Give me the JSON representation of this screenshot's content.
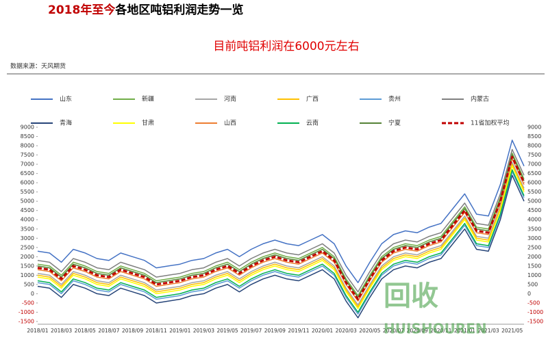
{
  "chart_data": {
    "type": "line",
    "title_highlight": "2018年至今",
    "title": "各地区吨铝利润走势一览",
    "subtitle": "目前吨铝利润在6000元左右",
    "source": "数据来源：天风期货",
    "watermark": {
      "logo": "回收",
      "text": "HUISHOUREN"
    },
    "categories": [
      "2018/01",
      null,
      "2018/03",
      null,
      "2018/05",
      null,
      "2018/07",
      null,
      "2018/09",
      null,
      "2018/11",
      null,
      "2019/01",
      null,
      "2019/03",
      null,
      "2019/05",
      null,
      "2019/07",
      null,
      "2019/09",
      null,
      "2019/11",
      null,
      "2020/01",
      null,
      "2020/03",
      null,
      "2020/05",
      null,
      "2020/07",
      null,
      "2020/09",
      null,
      "2020/11",
      null,
      "2021/01",
      null,
      "2021/03",
      null,
      "2021/05",
      null
    ],
    "series": [
      {
        "name": "山东",
        "color": "#4472c4",
        "values": [
          2300,
          2200,
          1700,
          2400,
          2200,
          1900,
          1800,
          2200,
          2000,
          1800,
          1400,
          1500,
          1600,
          1800,
          1900,
          2200,
          2400,
          2000,
          2400,
          2700,
          2900,
          2700,
          2600,
          2900,
          3200,
          2700,
          1500,
          600,
          1700,
          2700,
          3200,
          3400,
          3300,
          3600,
          3800,
          4600,
          5400,
          4300,
          4200,
          5900,
          8300,
          6900
        ]
      },
      {
        "name": "新疆",
        "color": "#70ad47",
        "values": [
          1600,
          1500,
          1000,
          1700,
          1500,
          1200,
          1100,
          1500,
          1300,
          1100,
          700,
          800,
          900,
          1100,
          1200,
          1500,
          1700,
          1300,
          1700,
          2000,
          2200,
          2000,
          1900,
          2200,
          2500,
          2000,
          800,
          -100,
          1000,
          2000,
          2500,
          2700,
          2600,
          2900,
          3100,
          3900,
          4700,
          3600,
          3500,
          5200,
          7600,
          6200
        ]
      },
      {
        "name": "河南",
        "color": "#a5a5a5",
        "values": [
          1100,
          1000,
          500,
          1200,
          1000,
          700,
          600,
          1000,
          800,
          600,
          200,
          300,
          400,
          600,
          700,
          1000,
          1200,
          800,
          1200,
          1500,
          1700,
          1500,
          1400,
          1700,
          2000,
          1500,
          300,
          -600,
          500,
          1500,
          2000,
          2200,
          2100,
          2400,
          2600,
          3400,
          4200,
          3100,
          3000,
          4700,
          7100,
          5700
        ]
      },
      {
        "name": "广西",
        "color": "#ffc000",
        "values": [
          1000,
          900,
          400,
          1100,
          900,
          600,
          500,
          900,
          700,
          500,
          100,
          200,
          300,
          500,
          600,
          900,
          1100,
          700,
          1100,
          1400,
          1600,
          1400,
          1300,
          1600,
          1900,
          1400,
          200,
          -700,
          400,
          1400,
          1900,
          2100,
          2000,
          2300,
          2500,
          3300,
          4100,
          3000,
          2900,
          4600,
          7000,
          5600
        ]
      },
      {
        "name": "贵州",
        "color": "#5b9bd5",
        "values": [
          600,
          500,
          0,
          700,
          500,
          200,
          100,
          500,
          300,
          100,
          -300,
          -200,
          -100,
          100,
          200,
          500,
          700,
          300,
          700,
          1000,
          1200,
          1000,
          900,
          1200,
          1500,
          1000,
          -200,
          -1100,
          0,
          1000,
          1500,
          1700,
          1600,
          1900,
          2100,
          2900,
          3700,
          2600,
          2500,
          4200,
          6600,
          5200
        ]
      },
      {
        "name": "内蒙古",
        "color": "#7f7f7f",
        "values": [
          1800,
          1700,
          1200,
          1900,
          1700,
          1400,
          1300,
          1700,
          1500,
          1300,
          900,
          1000,
          1100,
          1300,
          1400,
          1700,
          1900,
          1500,
          1900,
          2200,
          2400,
          2200,
          2100,
          2400,
          2700,
          2200,
          1000,
          100,
          1200,
          2200,
          2700,
          2900,
          2800,
          3100,
          3300,
          4100,
          4900,
          3800,
          3700,
          5400,
          7800,
          6400
        ]
      },
      {
        "name": "青海",
        "color": "#264478",
        "values": [
          400,
          300,
          -200,
          500,
          300,
          0,
          -100,
          300,
          100,
          -100,
          -500,
          -400,
          -300,
          -100,
          0,
          300,
          500,
          100,
          500,
          800,
          1000,
          800,
          700,
          1000,
          1300,
          800,
          -400,
          -1300,
          -200,
          800,
          1300,
          1500,
          1400,
          1700,
          1900,
          2700,
          3500,
          2400,
          2300,
          4000,
          6400,
          5000
        ]
      },
      {
        "name": "甘肃",
        "color": "#ffff00",
        "values": [
          900,
          800,
          300,
          1000,
          800,
          500,
          400,
          800,
          600,
          400,
          0,
          100,
          200,
          400,
          500,
          800,
          1000,
          600,
          1000,
          1300,
          1500,
          1300,
          1200,
          1500,
          1800,
          1300,
          100,
          -800,
          300,
          1300,
          1800,
          2000,
          1900,
          2200,
          2400,
          3200,
          4000,
          2900,
          2800,
          4500,
          6900,
          5500
        ]
      },
      {
        "name": "山西",
        "color": "#ed7d31",
        "values": [
          1300,
          1200,
          700,
          1400,
          1200,
          900,
          800,
          1200,
          1000,
          800,
          400,
          500,
          600,
          800,
          900,
          1200,
          1400,
          1000,
          1400,
          1700,
          1900,
          1700,
          1600,
          1900,
          2200,
          1700,
          500,
          -400,
          700,
          1700,
          2200,
          2400,
          2300,
          2600,
          2800,
          3600,
          4400,
          3300,
          3200,
          4900,
          7300,
          5900
        ]
      },
      {
        "name": "云南",
        "color": "#00b050",
        "values": [
          700,
          600,
          100,
          800,
          600,
          300,
          200,
          600,
          400,
          200,
          -200,
          -100,
          0,
          200,
          300,
          600,
          800,
          400,
          800,
          1100,
          1300,
          1100,
          1000,
          1300,
          1600,
          1100,
          -100,
          -1000,
          100,
          1100,
          1600,
          1800,
          1700,
          2000,
          2200,
          3000,
          3800,
          2700,
          2600,
          4300,
          6700,
          5300
        ]
      },
      {
        "name": "宁夏",
        "color": "#548235",
        "values": [
          1500,
          1400,
          900,
          1600,
          1400,
          1100,
          1000,
          1400,
          1200,
          1000,
          600,
          700,
          800,
          1000,
          1100,
          1400,
          1600,
          1200,
          1600,
          1900,
          2100,
          1900,
          1800,
          2100,
          2400,
          1900,
          700,
          -200,
          900,
          1900,
          2400,
          2600,
          2500,
          2800,
          3000,
          3800,
          4600,
          3500,
          3400,
          5100,
          7500,
          6100
        ]
      },
      {
        "name": "11省加权平均",
        "color": "#c00000",
        "dashed": true,
        "values": [
          1400,
          1300,
          800,
          1500,
          1300,
          1000,
          900,
          1300,
          1100,
          900,
          500,
          600,
          700,
          900,
          1000,
          1300,
          1500,
          1100,
          1500,
          1800,
          2000,
          1800,
          1700,
          2000,
          2300,
          1800,
          600,
          -300,
          800,
          1800,
          2300,
          2500,
          2400,
          2700,
          2900,
          3700,
          4500,
          3400,
          3300,
          5000,
          7400,
          6000
        ]
      }
    ],
    "ylim": [
      -1500,
      9000
    ],
    "yticks": [
      -1500,
      -1000,
      -500,
      0,
      500,
      1000,
      1500,
      2000,
      2500,
      3000,
      3500,
      4000,
      4500,
      5000,
      5500,
      6000,
      6500,
      7000,
      7500,
      8000,
      8500,
      9000
    ],
    "right_axis_mirror": true,
    "negative_tick_color": "#c00000"
  }
}
